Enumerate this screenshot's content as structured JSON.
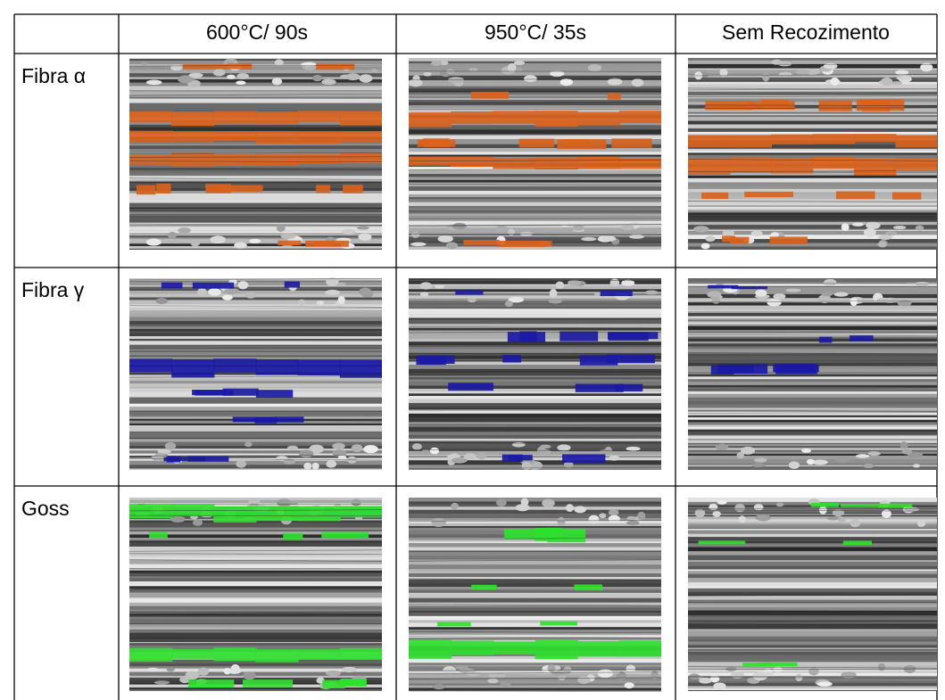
{
  "header": {
    "columns": [
      "600°C/ 90s",
      "950°C/ 35s",
      "Sem Recozimento"
    ]
  },
  "rows": [
    {
      "label": "Fibra α"
    },
    {
      "label": "Fibra γ"
    },
    {
      "label": "Goss"
    }
  ]
}
